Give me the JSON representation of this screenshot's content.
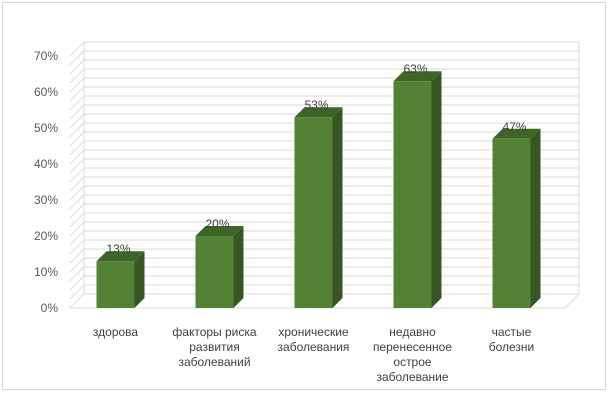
{
  "chart_data": {
    "type": "bar",
    "style": "3d-column",
    "categories": [
      [
        "здорова"
      ],
      [
        "факторы риска",
        "развития",
        "заболеваний"
      ],
      [
        "хронические",
        "заболевания"
      ],
      [
        "недавно",
        "перенесенное",
        "острое",
        "заболевание"
      ],
      [
        "частые",
        "болезни"
      ]
    ],
    "values": [
      13,
      20,
      53,
      63,
      47
    ],
    "data_labels": [
      "13%",
      "20%",
      "53%",
      "63%",
      "47%"
    ],
    "y_ticks": [
      "0%",
      "10%",
      "20%",
      "30%",
      "40%",
      "50%",
      "60%",
      "70%"
    ],
    "ylim": [
      0,
      70
    ],
    "y_unit": "%",
    "title": "",
    "xlabel": "",
    "ylabel": "",
    "grid": true,
    "legend": "none",
    "colors": {
      "bar_front": "#548235",
      "bar_side": "#375623",
      "bar_top": "#3f6428",
      "grid": "#d9d9d9",
      "wall": "#ffffff"
    }
  }
}
